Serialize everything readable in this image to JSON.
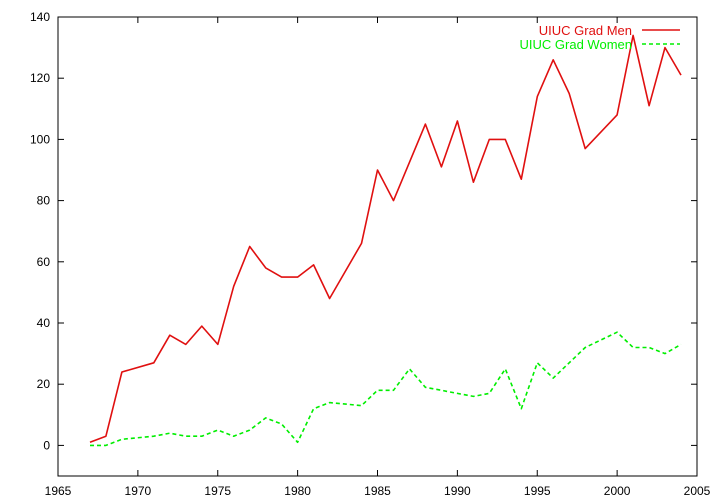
{
  "chart_data": {
    "type": "line",
    "title": "",
    "xlabel": "",
    "ylabel": "",
    "xlim": [
      1965,
      2005
    ],
    "ylim": [
      -10,
      140
    ],
    "xticks": [
      1965,
      1970,
      1975,
      1980,
      1985,
      1990,
      1995,
      2000,
      2005
    ],
    "yticks": [
      0,
      20,
      40,
      60,
      80,
      100,
      120,
      140
    ],
    "grid": false,
    "legend_position": "top-right",
    "series": [
      {
        "name": "UIUC Grad Men",
        "color": "#e01010",
        "dash": "solid",
        "x": [
          1967,
          1968,
          1969,
          1971,
          1972,
          1973,
          1974,
          1975,
          1976,
          1977,
          1978,
          1979,
          1980,
          1981,
          1982,
          1984,
          1985,
          1986,
          1988,
          1989,
          1990,
          1991,
          1992,
          1993,
          1994,
          1995,
          1996,
          1997,
          1998,
          2000,
          2001,
          2002,
          2003,
          2004
        ],
        "y": [
          1,
          3,
          24,
          27,
          36,
          33,
          39,
          33,
          52,
          65,
          58,
          55,
          55,
          59,
          48,
          66,
          90,
          80,
          105,
          91,
          106,
          86,
          100,
          100,
          87,
          114,
          126,
          115,
          97,
          108,
          134,
          111,
          130,
          121
        ]
      },
      {
        "name": "UIUC Grad Women",
        "color": "#00ee00",
        "dash": "dashed",
        "x": [
          1967,
          1968,
          1969,
          1971,
          1972,
          1973,
          1974,
          1975,
          1976,
          1977,
          1978,
          1979,
          1980,
          1981,
          1982,
          1984,
          1985,
          1986,
          1987,
          1988,
          1989,
          1990,
          1991,
          1992,
          1993,
          1994,
          1995,
          1996,
          1997,
          1998,
          2000,
          2001,
          2002,
          2003,
          2004
        ],
        "y": [
          0,
          0,
          2,
          3,
          4,
          3,
          3,
          5,
          3,
          5,
          9,
          7,
          1,
          12,
          14,
          13,
          18,
          18,
          25,
          19,
          18,
          17,
          16,
          17,
          25,
          12,
          27,
          22,
          27,
          32,
          37,
          32,
          32,
          30,
          33
        ]
      }
    ]
  }
}
